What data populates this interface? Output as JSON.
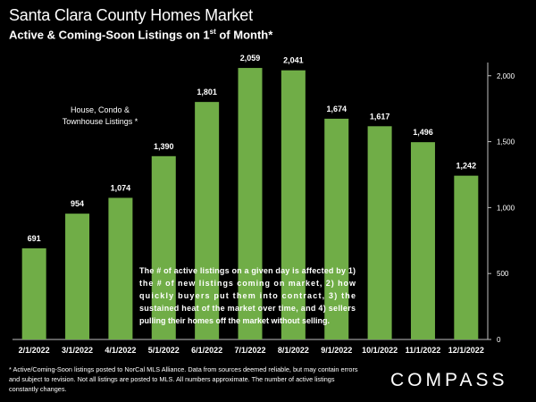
{
  "header": {
    "title": "Santa Clara County Homes Market",
    "subtitle_main": "Active & Coming-Soon Listings on 1",
    "subtitle_sup": "st",
    "subtitle_end": " of Month*"
  },
  "chart_data": {
    "type": "bar",
    "categories": [
      "2/1/2022",
      "3/1/2022",
      "4/1/2022",
      "5/1/2022",
      "6/1/2022",
      "7/1/2022",
      "8/1/2022",
      "9/1/2022",
      "10/1/2022",
      "11/1/2022",
      "12/1/2022"
    ],
    "values": [
      691,
      954,
      1074,
      1390,
      1801,
      2059,
      2041,
      1674,
      1617,
      1496,
      1242
    ],
    "data_labels": [
      "691",
      "954",
      "1,074",
      "1,390",
      "1,801",
      "2,059",
      "2,041",
      "1,674",
      "1,617",
      "1,496",
      "1,242"
    ],
    "ylim": [
      0,
      2100
    ],
    "yticks": [
      0,
      500,
      1000,
      1500,
      2000
    ],
    "ytick_labels": [
      "0",
      "500",
      "1,000",
      "1,500",
      "2,000"
    ],
    "y_axis_side": "right",
    "grid": false,
    "bar_color": "#70ad47",
    "annotations": {
      "legend_line1": "House, Condo &",
      "legend_line2": "Townhouse Listings *",
      "note_lines": [
        "The # of active listings on a given day is affected by 1)",
        "the # of new listings coming on market, 2) how",
        "quickly buyers put them into contract, 3) the",
        "sustained heat of the market over time, and 4) sellers",
        "pulling their homes off the market without selling."
      ]
    }
  },
  "footer": {
    "footnote": "* Active/Coming-Soon listings posted to NorCal MLS Alliance.   Data from sources deemed reliable, but may contain errors and subject to revision.  Not all listings are posted to MLS. All numbers approximate. The number of active listings constantly changes.",
    "brand": "COMPASS"
  }
}
